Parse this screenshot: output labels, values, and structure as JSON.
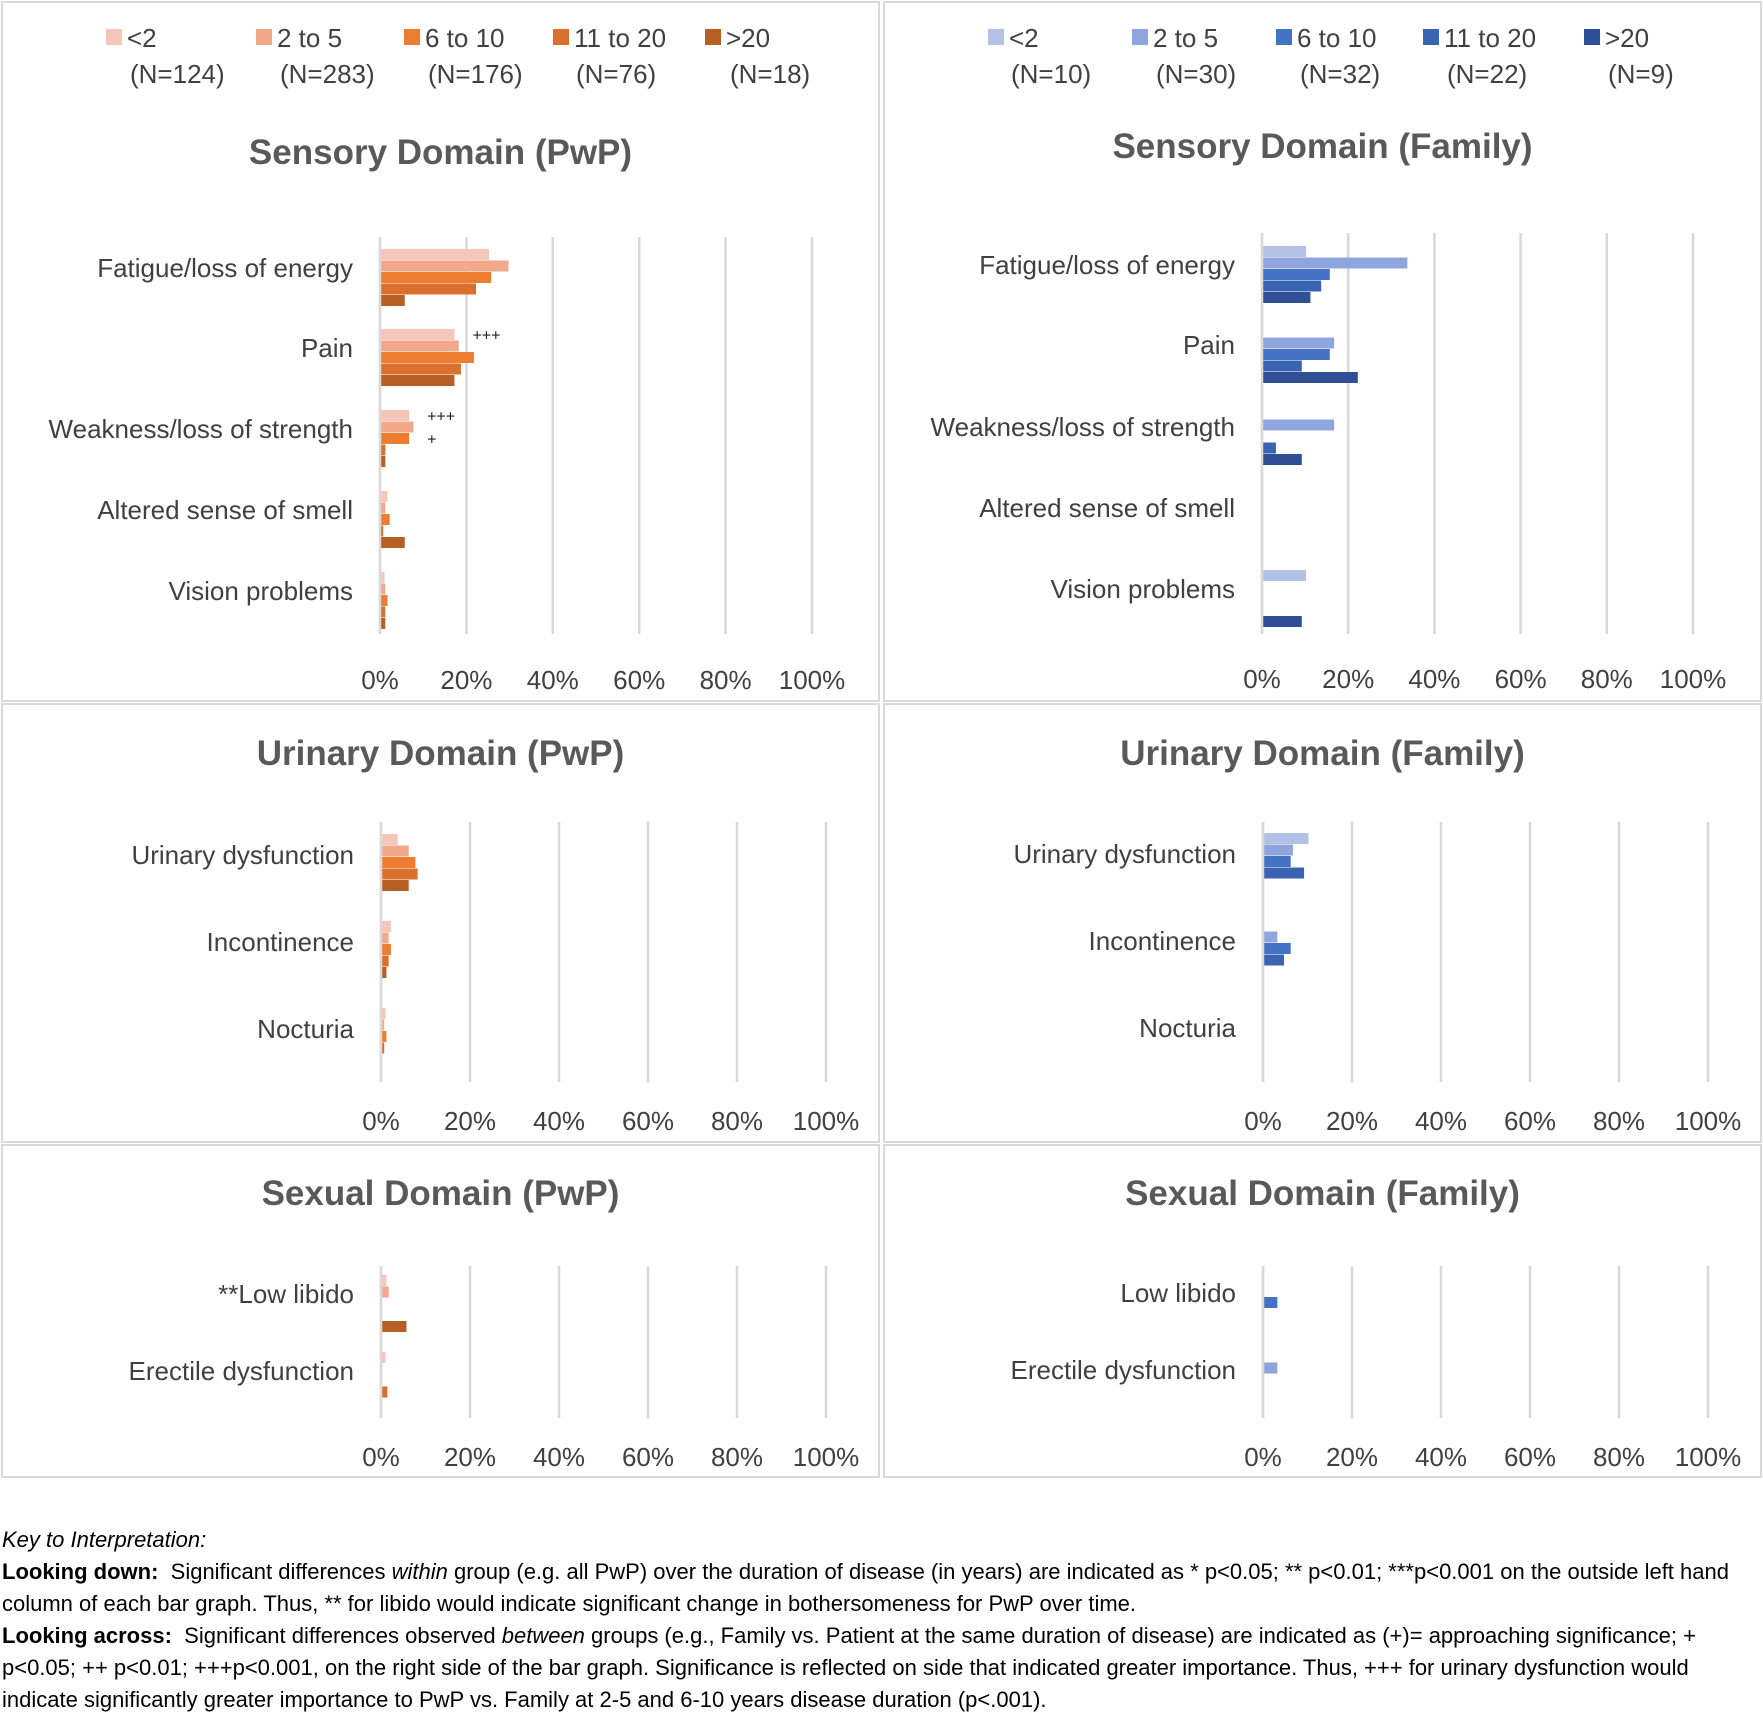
{
  "chart_data": [
    {
      "id": "sensory-pwp",
      "type": "bar",
      "orientation": "horizontal",
      "title": "Sensory Domain (PwP)",
      "categories": [
        "Fatigue/loss of energy",
        "Pain",
        "Weakness/loss of strength",
        "Altered sense of smell",
        "Vision problems"
      ],
      "xticks": [
        "0%",
        "20%",
        "40%",
        "60%",
        "80%",
        "100%"
      ],
      "xlim": [
        0,
        100
      ],
      "legend": {
        "placement": "top"
      },
      "series": [
        {
          "name": "<2",
          "n": "(N=124)",
          "color": "#F4C7B8",
          "values": [
            25,
            17,
            6.5,
            1.5,
            0.8
          ]
        },
        {
          "name": "2 to 5",
          "n": "(N=283)",
          "color": "#F2A88A",
          "values": [
            29.5,
            18,
            7.5,
            1,
            1
          ]
        },
        {
          "name": "6 to 10",
          "n": "(N=176)",
          "color": "#ED7D31",
          "values": [
            25.5,
            21.5,
            6.5,
            2,
            1.5
          ]
        },
        {
          "name": "11 to 20",
          "n": "(N=76)",
          "color": "#D9702E",
          "values": [
            22,
            18.5,
            1,
            0.5,
            1
          ]
        },
        {
          "name": ">20",
          "n": "(N=18)",
          "color": "#B85F25",
          "values": [
            5.5,
            17,
            1,
            5.5,
            1
          ]
        }
      ],
      "annotations": [
        {
          "category_index": 1,
          "series_index": 0,
          "text": "+++"
        },
        {
          "category_index": 2,
          "series_index": 0,
          "text": "+++"
        },
        {
          "category_index": 2,
          "series_index": 2,
          "text": "+"
        }
      ]
    },
    {
      "id": "sensory-family",
      "type": "bar",
      "orientation": "horizontal",
      "title": "Sensory Domain (Family)",
      "categories": [
        "Fatigue/loss of energy",
        "Pain",
        "Weakness/loss of strength",
        "Altered sense of smell",
        "Vision problems"
      ],
      "xticks": [
        "0%",
        "20%",
        "40%",
        "60%",
        "80%",
        "100%"
      ],
      "xlim": [
        0,
        100
      ],
      "legend": {
        "placement": "top"
      },
      "series": [
        {
          "name": "<2",
          "n": "(N=10)",
          "color": "#B4C1E6",
          "values": [
            10,
            0,
            0,
            0,
            10
          ]
        },
        {
          "name": "2 to 5",
          "n": "(N=30)",
          "color": "#8FA5DE",
          "values": [
            33.5,
            16.5,
            16.5,
            0,
            0
          ]
        },
        {
          "name": "6 to 10",
          "n": "(N=32)",
          "color": "#4472C4",
          "values": [
            15.5,
            15.5,
            0,
            0,
            0
          ]
        },
        {
          "name": "11 to 20",
          "n": "(N=22)",
          "color": "#3A63B4",
          "values": [
            13.5,
            9,
            3,
            0,
            0
          ]
        },
        {
          "name": ">20",
          "n": "(N=9)",
          "color": "#2F4E96",
          "values": [
            11,
            22,
            9,
            0,
            9
          ]
        }
      ],
      "annotations": []
    },
    {
      "id": "urinary-pwp",
      "type": "bar",
      "orientation": "horizontal",
      "title": "Urinary Domain (PwP)",
      "categories": [
        "Urinary dysfunction",
        "Incontinence",
        "Nocturia"
      ],
      "xticks": [
        "0%",
        "20%",
        "40%",
        "60%",
        "80%",
        "100%"
      ],
      "xlim": [
        0,
        100
      ],
      "series": [
        {
          "name": "<2",
          "color": "#F4C7B8",
          "values": [
            3.5,
            2,
            0.8
          ]
        },
        {
          "name": "2 to 5",
          "color": "#F2A88A",
          "values": [
            6,
            1.5,
            0.5
          ]
        },
        {
          "name": "6 to 10",
          "color": "#ED7D31",
          "values": [
            7.5,
            2,
            1
          ]
        },
        {
          "name": "11 to 20",
          "color": "#D9702E",
          "values": [
            8,
            1.5,
            0.5
          ]
        },
        {
          "name": ">20",
          "color": "#B85F25",
          "values": [
            6,
            1,
            0
          ]
        }
      ],
      "annotations": []
    },
    {
      "id": "urinary-family",
      "type": "bar",
      "orientation": "horizontal",
      "title": "Urinary Domain (Family)",
      "categories": [
        "Urinary dysfunction",
        "Incontinence",
        "Nocturia"
      ],
      "xticks": [
        "0%",
        "20%",
        "40%",
        "60%",
        "80%",
        "100%"
      ],
      "xlim": [
        0,
        100
      ],
      "series": [
        {
          "name": "<2",
          "color": "#B4C1E6",
          "values": [
            10,
            0,
            0
          ]
        },
        {
          "name": "2 to 5",
          "color": "#8FA5DE",
          "values": [
            6.5,
            3,
            0
          ]
        },
        {
          "name": "6 to 10",
          "color": "#4472C4",
          "values": [
            6,
            6,
            0
          ]
        },
        {
          "name": "11 to 20",
          "color": "#3A63B4",
          "values": [
            9,
            4.5,
            0
          ]
        },
        {
          "name": ">20",
          "color": "#2F4E96",
          "values": [
            0,
            0,
            0
          ]
        }
      ],
      "annotations": []
    },
    {
      "id": "sexual-pwp",
      "type": "bar",
      "orientation": "horizontal",
      "title": "Sexual Domain (PwP)",
      "categories": [
        "**Low libido",
        "Erectile dysfunction"
      ],
      "xticks": [
        "0%",
        "20%",
        "40%",
        "60%",
        "80%",
        "100%"
      ],
      "xlim": [
        0,
        100
      ],
      "series": [
        {
          "name": "<2",
          "color": "#F4C7B8",
          "values": [
            1,
            0.8
          ]
        },
        {
          "name": "2 to 5",
          "color": "#F2A88A",
          "values": [
            1.5,
            0
          ]
        },
        {
          "name": "6 to 10",
          "color": "#ED7D31",
          "values": [
            0,
            0
          ]
        },
        {
          "name": "11 to 20",
          "color": "#D9702E",
          "values": [
            0,
            1.2
          ]
        },
        {
          "name": ">20",
          "color": "#B85F25",
          "values": [
            5.5,
            0
          ]
        }
      ],
      "annotations": []
    },
    {
      "id": "sexual-family",
      "type": "bar",
      "orientation": "horizontal",
      "title": "Sexual Domain (Family)",
      "categories": [
        "Low libido",
        "Erectile dysfunction"
      ],
      "xticks": [
        "0%",
        "20%",
        "40%",
        "60%",
        "80%",
        "100%"
      ],
      "xlim": [
        0,
        100
      ],
      "series": [
        {
          "name": "<2",
          "color": "#B4C1E6",
          "values": [
            0,
            0
          ]
        },
        {
          "name": "2 to 5",
          "color": "#8FA5DE",
          "values": [
            0,
            3
          ]
        },
        {
          "name": "6 to 10",
          "color": "#4472C4",
          "values": [
            3,
            0
          ]
        },
        {
          "name": "11 to 20",
          "color": "#3A63B4",
          "values": [
            0,
            0
          ]
        },
        {
          "name": ">20",
          "color": "#2F4E96",
          "values": [
            0,
            0
          ]
        }
      ],
      "annotations": []
    }
  ],
  "key": {
    "heading": "Key to Interpretation:",
    "down_label": "Looking down:",
    "down_pre": "Significant differences",
    "down_em": "within",
    "down_post": "group (e.g. all PwP) over the duration of disease (in years) are indicated as * p<0.05; ** p<0.01; ***p<0.001 on the outside left hand column of each bar graph.  Thus, ** for libido would indicate significant change in bothersomeness for PwP over time.",
    "across_label": "Looking across:",
    "across_pre": "Significant differences observed",
    "across_em": "between",
    "across_post": "groups (e.g., Family vs. Patient at the same duration of disease) are indicated as  (+)= approaching significance; + p<0.05; ++ p<0.01; +++p<0.001, on the right side of the bar graph.  Significance is reflected on side that indicated greater importance. Thus, +++ for urinary dysfunction would indicate significantly greater importance to PwP vs. Family at 2-5 and 6-10 years disease duration (p<.001)."
  }
}
